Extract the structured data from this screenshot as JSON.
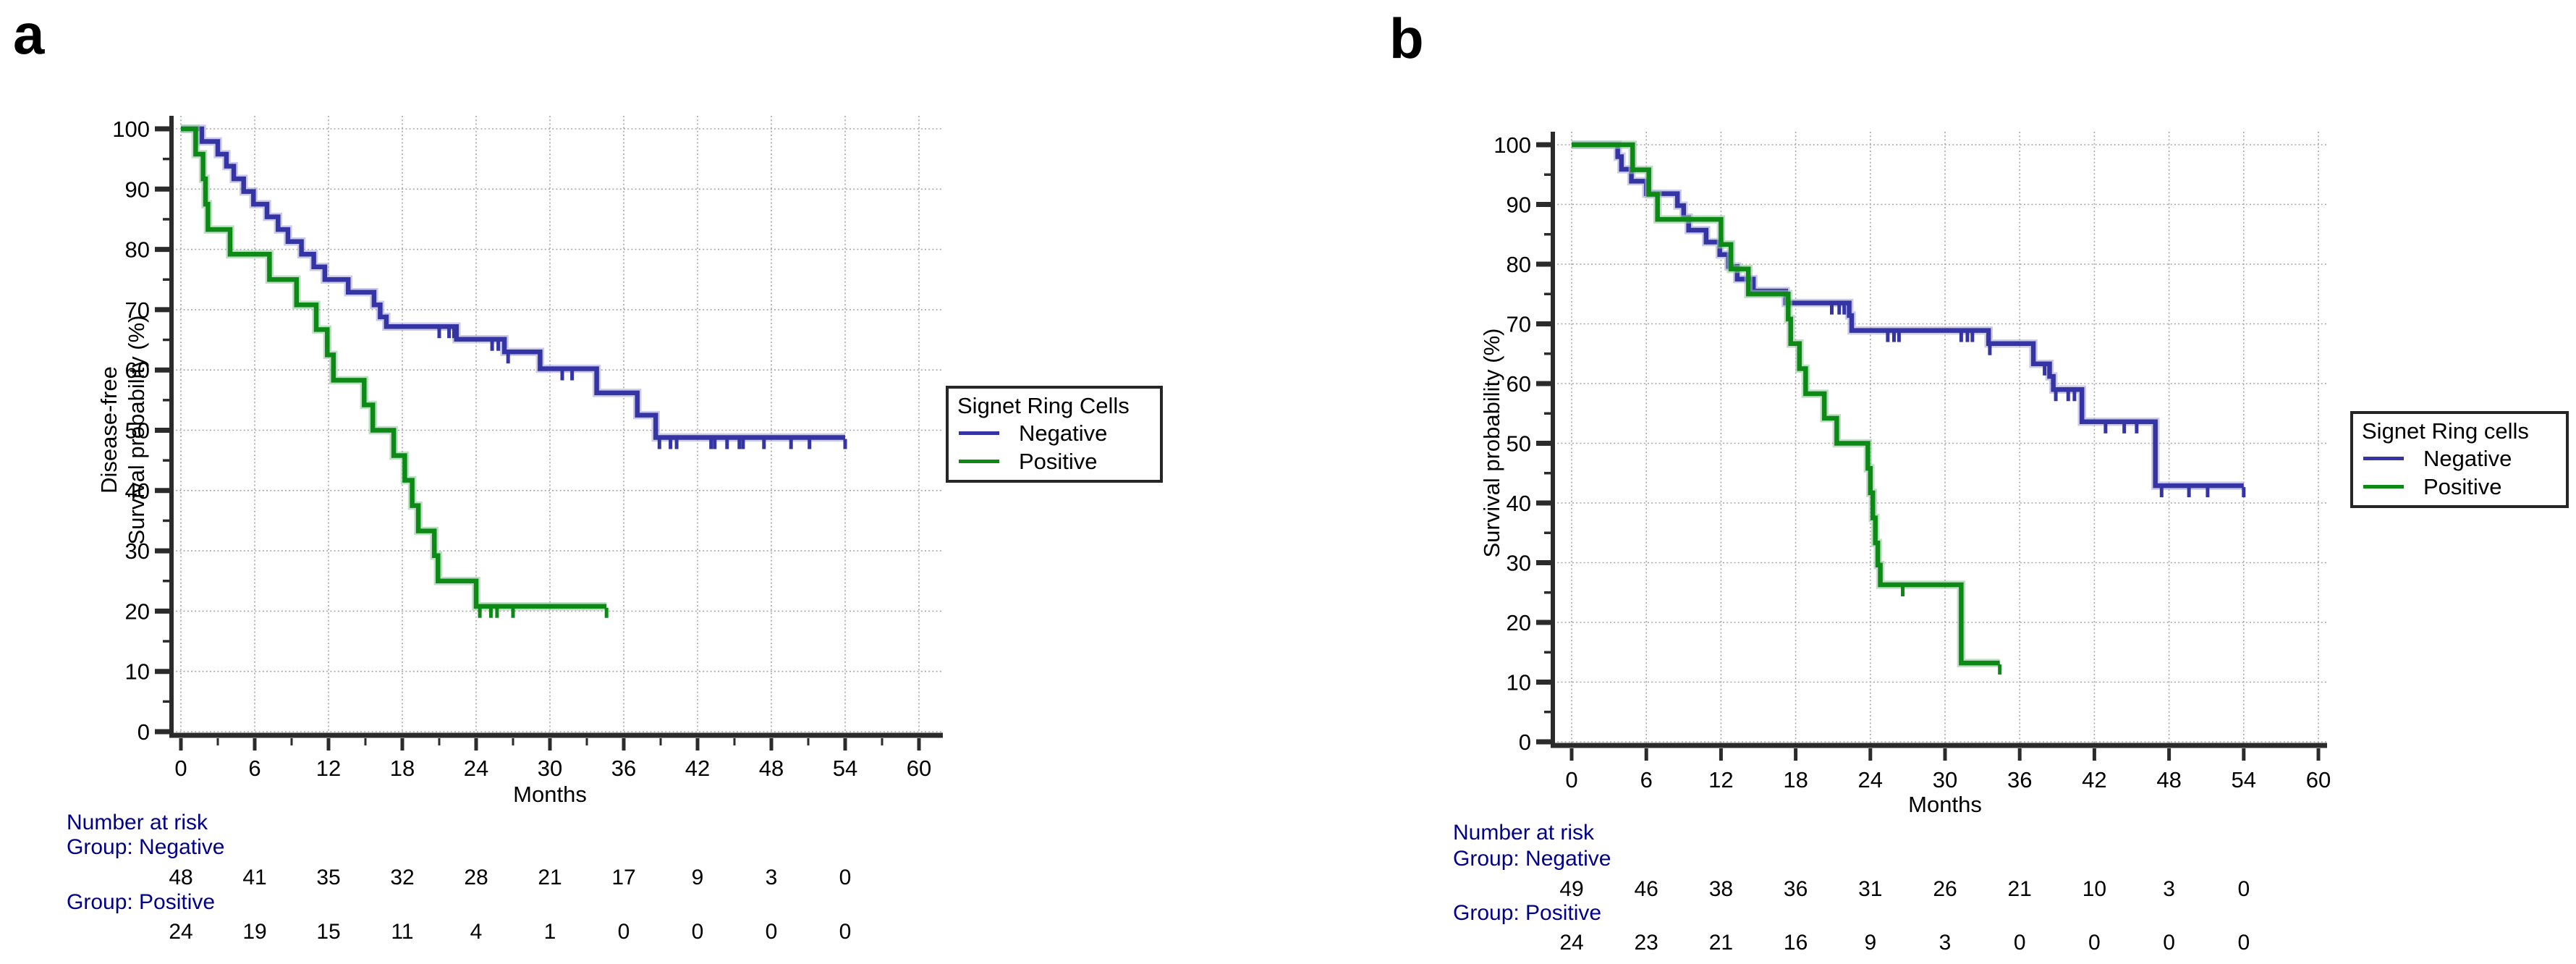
{
  "panel_labels": [
    "a",
    "b"
  ],
  "chart_data": [
    {
      "type": "line",
      "subtype": "kaplan-meier-step",
      "panel": "a",
      "xlabel": "Months",
      "ylabel": "Disease-free Survival probability (%)",
      "ylabel_lines": [
        "Disease-free",
        "Survival probability (%)"
      ],
      "xlim": [
        0,
        62
      ],
      "ylim": [
        0,
        100
      ],
      "x_ticks": [
        0,
        6,
        12,
        18,
        24,
        30,
        36,
        42,
        48,
        54,
        60
      ],
      "x_minor_step": 3,
      "y_ticks": [
        0,
        10,
        20,
        30,
        40,
        50,
        60,
        70,
        80,
        90,
        100
      ],
      "y_minor_step": 5,
      "grid": true,
      "legend_position": "right",
      "legend_title": "Signet Ring Cells",
      "series": [
        {
          "name": "Negative",
          "color": "#3434A4",
          "halo": "#a9a9da",
          "steps": [
            [
              0,
              100
            ],
            [
              1.7,
              97.9
            ],
            [
              3.0,
              95.8
            ],
            [
              3.7,
              93.8
            ],
            [
              4.3,
              91.7
            ],
            [
              5.1,
              89.6
            ],
            [
              5.9,
              87.5
            ],
            [
              7.0,
              85.4
            ],
            [
              7.9,
              83.3
            ],
            [
              8.7,
              81.3
            ],
            [
              9.8,
              79.2
            ],
            [
              10.8,
              77.1
            ],
            [
              11.7,
              75.0
            ],
            [
              13.6,
              72.9
            ],
            [
              15.7,
              70.8
            ],
            [
              16.2,
              68.8
            ],
            [
              16.7,
              67.2
            ],
            [
              22.4,
              65.1
            ],
            [
              26.3,
              63.0
            ],
            [
              29.2,
              60.2
            ],
            [
              33.8,
              56.2
            ],
            [
              37.1,
              52.5
            ],
            [
              38.6,
              48.8
            ]
          ],
          "end_time": 54,
          "censor_times": [
            21.0,
            21.8,
            22.2,
            25.3,
            25.8,
            26.6,
            31.0,
            31.8,
            38.9,
            39.8,
            40.3,
            43.1,
            43.4,
            44.4,
            45.4,
            45.7,
            47.4,
            49.6,
            51.1,
            54.0
          ]
        },
        {
          "name": "Positive",
          "color": "#0D8A16",
          "halo": "#96c8a0",
          "steps": [
            [
              0,
              100
            ],
            [
              1.2,
              95.8
            ],
            [
              1.8,
              91.7
            ],
            [
              2.0,
              87.5
            ],
            [
              2.2,
              83.3
            ],
            [
              4.0,
              79.2
            ],
            [
              7.2,
              75.0
            ],
            [
              9.4,
              70.8
            ],
            [
              11.0,
              66.7
            ],
            [
              11.9,
              62.5
            ],
            [
              12.4,
              58.3
            ],
            [
              14.9,
              54.2
            ],
            [
              15.6,
              50.0
            ],
            [
              17.3,
              45.8
            ],
            [
              18.2,
              41.7
            ],
            [
              18.8,
              37.5
            ],
            [
              19.3,
              33.3
            ],
            [
              20.6,
              29.2
            ],
            [
              20.9,
              25.0
            ],
            [
              24.0,
              20.8
            ]
          ],
          "end_time": 34.6,
          "censor_times": [
            24.3,
            25.2,
            25.7,
            27.0,
            34.6
          ]
        }
      ],
      "number_at_risk": {
        "title": "Number at risk",
        "times": [
          0,
          6,
          12,
          18,
          24,
          30,
          36,
          42,
          48,
          54
        ],
        "groups": [
          {
            "name": "Group: Negative",
            "values": [
              48,
              41,
              35,
              32,
              28,
              21,
              17,
              9,
              3,
              0
            ]
          },
          {
            "name": "Group: Positive",
            "values": [
              24,
              19,
              15,
              11,
              4,
              1,
              0,
              0,
              0,
              0
            ]
          }
        ]
      }
    },
    {
      "type": "line",
      "subtype": "kaplan-meier-step",
      "panel": "b",
      "xlabel": "Months",
      "ylabel": "Survival probability (%)",
      "ylabel_lines": [
        "Survival probability (%)"
      ],
      "xlim": [
        0,
        62
      ],
      "ylim": [
        0,
        100
      ],
      "x_ticks": [
        0,
        6,
        12,
        18,
        24,
        30,
        36,
        42,
        48,
        54,
        60
      ],
      "x_minor_step": 0,
      "y_ticks": [
        0,
        10,
        20,
        30,
        40,
        50,
        60,
        70,
        80,
        90,
        100
      ],
      "y_minor_step": 5,
      "grid": true,
      "legend_position": "right",
      "legend_title": "Signet Ring cells",
      "series": [
        {
          "name": "Negative",
          "color": "#3434A4",
          "halo": "#a9a9da",
          "steps": [
            [
              0,
              100
            ],
            [
              3.7,
              98.0
            ],
            [
              4.0,
              95.9
            ],
            [
              4.8,
              93.9
            ],
            [
              6.0,
              91.8
            ],
            [
              8.5,
              89.8
            ],
            [
              9.0,
              87.8
            ],
            [
              9.4,
              85.7
            ],
            [
              10.8,
              83.7
            ],
            [
              11.9,
              81.6
            ],
            [
              12.6,
              79.6
            ],
            [
              13.3,
              77.5
            ],
            [
              14.6,
              75.5
            ],
            [
              17.2,
              73.5
            ],
            [
              22.3,
              71.4
            ],
            [
              22.5,
              68.9
            ],
            [
              33.5,
              66.7
            ],
            [
              37.1,
              63.3
            ],
            [
              38.4,
              61.2
            ],
            [
              38.7,
              59.0
            ],
            [
              41.0,
              53.6
            ],
            [
              46.9,
              42.9
            ]
          ],
          "end_time": 54,
          "censor_times": [
            20.9,
            21.5,
            21.9,
            25.4,
            25.9,
            26.3,
            31.3,
            31.8,
            32.2,
            33.6,
            38.0,
            38.9,
            39.9,
            40.4,
            42.9,
            44.4,
            45.4,
            47.4,
            49.6,
            51.1,
            54.0
          ]
        },
        {
          "name": "Positive",
          "color": "#0D8A16",
          "halo": "#96c8a0",
          "steps": [
            [
              0,
              100
            ],
            [
              4.9,
              95.8
            ],
            [
              6.2,
              91.7
            ],
            [
              6.9,
              87.5
            ],
            [
              12.0,
              83.3
            ],
            [
              12.8,
              79.2
            ],
            [
              14.2,
              75.0
            ],
            [
              17.4,
              70.8
            ],
            [
              17.6,
              66.7
            ],
            [
              18.3,
              62.5
            ],
            [
              18.8,
              58.3
            ],
            [
              20.3,
              54.2
            ],
            [
              21.3,
              50.0
            ],
            [
              23.8,
              45.8
            ],
            [
              24.0,
              41.7
            ],
            [
              24.2,
              37.5
            ],
            [
              24.4,
              33.3
            ],
            [
              24.6,
              29.6
            ],
            [
              24.8,
              26.3
            ],
            [
              31.3,
              13.2
            ]
          ],
          "end_time": 34.4,
          "censor_times": [
            26.6,
            34.4
          ]
        }
      ],
      "number_at_risk": {
        "title": "Number at risk",
        "times": [
          0,
          6,
          12,
          18,
          24,
          30,
          36,
          42,
          48,
          54
        ],
        "groups": [
          {
            "name": "Group: Negative",
            "values": [
              49,
              46,
              38,
              36,
              31,
              26,
              21,
              10,
              3,
              0
            ]
          },
          {
            "name": "Group: Positive",
            "values": [
              24,
              23,
              21,
              16,
              9,
              3,
              0,
              0,
              0,
              0
            ]
          }
        ]
      }
    }
  ]
}
